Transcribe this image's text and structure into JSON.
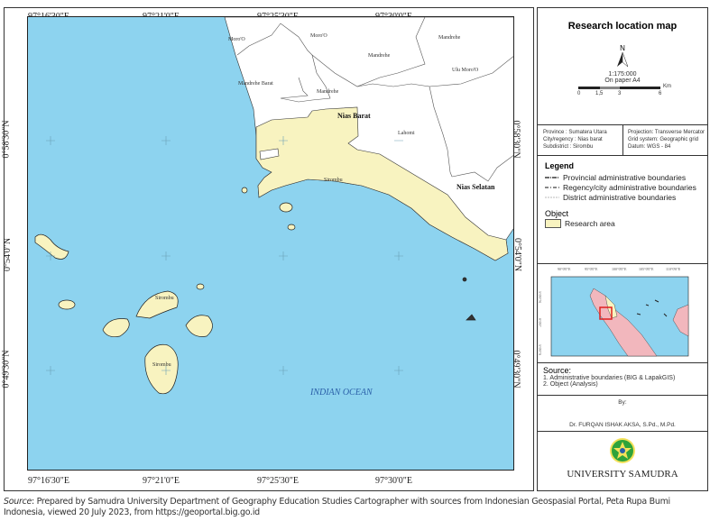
{
  "map": {
    "top_ticks": [
      "97°16'30\"E",
      "97°21'0\"E",
      "97°25'30\"E",
      "97°30'0\"E"
    ],
    "bottom_ticks": [
      "97°16'30\"E",
      "97°21'0\"E",
      "97°25'30\"E",
      "97°30'0\"E"
    ],
    "left_ticks": [
      "0°58'30\"N",
      "0°54'0\"N",
      "0°49'30\"N"
    ],
    "right_ticks": [
      "0°58'30\"N",
      "0°54'0\"N",
      "0°49'30\"N"
    ],
    "labels": {
      "moro1": "Moro'O",
      "moro2": "Moro'O",
      "mandrehe1": "Mandrehe",
      "mandrehe2": "Mandrehe",
      "mandrehe3": "Mandrehe",
      "mandrehe_barat": "Mandrehe Barat",
      "ulu_moro": "Ulu Moro'O",
      "nias_barat": "Nias Barat",
      "lahomi": "Lahomi",
      "sirombu1": "Sirombu",
      "nias_selatan": "Nias Selatan",
      "sirombu2": "Sirombu",
      "sirombu3": "Sirombu",
      "ocean": "INDIAN OCEAN"
    },
    "colors": {
      "sea": "#8dd3ef",
      "land": "#ffffff",
      "research": "#f8f3c0"
    }
  },
  "panel": {
    "title": "Research location map",
    "north": "N",
    "scale": "1:175:000",
    "paper": "On paper A4",
    "scale_ticks": [
      "0",
      "1,5",
      "3",
      "6"
    ],
    "scale_unit": "Km",
    "info_left": [
      "Province     : Sumatera Utara",
      "City/regency : Nias barat",
      "Subdistrict   : Sirombu"
    ],
    "info_right": [
      "Projection: Transverse Mercator",
      "Grid system: Geographic grid",
      "Datum: WGS - 84"
    ],
    "legend_title": "Legend",
    "legend_items": [
      "Provincial administrative boundaries",
      "Regency/city administrative boundaries",
      "District administrative boundaries"
    ],
    "object_title": "Object",
    "object_item": "Research area",
    "inset_top": [
      "90°0'0\"E",
      "95°0'0\"E",
      "100°0'0\"E",
      "105°0'0\"E",
      "110°0'0\"E"
    ],
    "inset_left": [
      "5°0'0\"N",
      "0°0'0\"",
      "5°0'0\"S"
    ],
    "source_title": "Source:",
    "sources": [
      "1. Administrative boundaries (BIG & LapakGIS)",
      "2. Object (Analysis)"
    ],
    "by": "By:",
    "author": "Dr. FURQAN ISHAK AKSA, S.Pd., M.Pd.",
    "university": "UNIVERSITY SAMUDRA"
  },
  "caption": {
    "source_label": "Source",
    "text": ": Prepared by Samudra University Department of Geography Education Studies Cartographer with sources from Indonesian Geospasial Portal, Peta Rupa Bumi Indonesia, viewed 20 July 2023, from https://geoportal.big.go.id"
  }
}
